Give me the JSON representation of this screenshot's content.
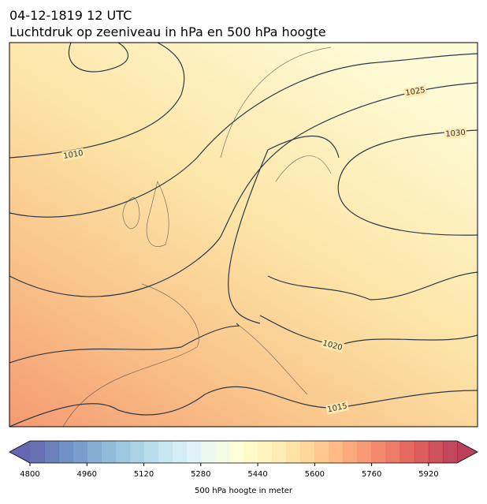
{
  "header": {
    "date": "04-12-1819 12 UTC",
    "title": "Luchtdruk op zeeniveau in hPa en 500 hPa hoogte"
  },
  "map": {
    "contour_labels": [
      1010,
      1025,
      1030,
      1020,
      1015
    ]
  },
  "colorbar": {
    "lim": [
      4800,
      6000
    ],
    "ticks": [
      4800,
      4960,
      5120,
      5280,
      5440,
      5600,
      5760,
      5920
    ],
    "label": "500 hPa hoogte in meter"
  }
}
